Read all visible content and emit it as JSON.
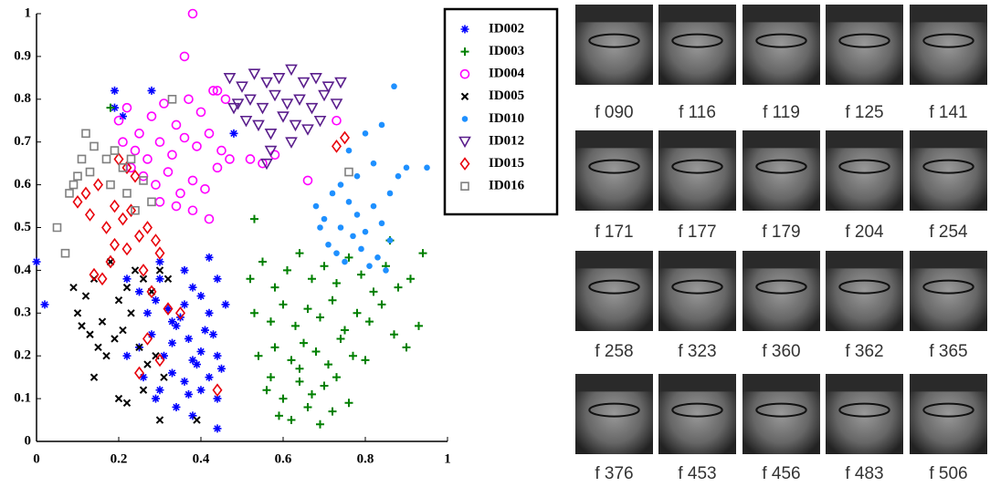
{
  "chart_data": {
    "type": "scatter",
    "xlim": [
      0,
      1
    ],
    "xticks": [
      0,
      0.2,
      0.4,
      0.6,
      0.8,
      1
    ],
    "ylim": [
      0,
      1
    ],
    "yticks": [
      0,
      0.1,
      0.2,
      0.3,
      0.4,
      0.5,
      0.6,
      0.7,
      0.8,
      0.9,
      1
    ],
    "legend": "right",
    "series": [
      {
        "name": "ID002",
        "color": "#0000ff",
        "marker": "asterisk",
        "x": [
          0.0,
          0.02,
          0.19,
          0.22,
          0.25,
          0.29,
          0.3,
          0.33,
          0.36,
          0.38,
          0.4,
          0.42,
          0.44,
          0.46,
          0.25,
          0.28,
          0.31,
          0.34,
          0.37,
          0.4,
          0.43,
          0.26,
          0.3,
          0.33,
          0.36,
          0.39,
          0.42,
          0.45,
          0.27,
          0.32,
          0.35,
          0.38,
          0.41,
          0.44,
          0.29,
          0.34,
          0.37,
          0.4,
          0.44,
          0.3,
          0.36,
          0.42,
          0.38,
          0.19,
          0.28,
          0.44,
          0.21,
          0.48,
          0.22,
          0.33
        ],
        "values": [
          0.42,
          0.32,
          0.78,
          0.38,
          0.35,
          0.33,
          0.38,
          0.28,
          0.32,
          0.36,
          0.34,
          0.3,
          0.38,
          0.32,
          0.22,
          0.25,
          0.2,
          0.27,
          0.24,
          0.21,
          0.25,
          0.15,
          0.12,
          0.16,
          0.14,
          0.18,
          0.15,
          0.17,
          0.3,
          0.31,
          0.29,
          0.19,
          0.26,
          0.2,
          0.1,
          0.08,
          0.11,
          0.12,
          0.1,
          0.42,
          0.4,
          0.43,
          0.06,
          0.82,
          0.82,
          0.03,
          0.76,
          0.72,
          0.2,
          0.23
        ]
      },
      {
        "name": "ID003",
        "color": "#008000",
        "marker": "plus",
        "x": [
          0.52,
          0.55,
          0.58,
          0.61,
          0.64,
          0.67,
          0.7,
          0.73,
          0.76,
          0.79,
          0.82,
          0.85,
          0.88,
          0.91,
          0.94,
          0.53,
          0.57,
          0.6,
          0.63,
          0.66,
          0.69,
          0.72,
          0.75,
          0.78,
          0.81,
          0.84,
          0.87,
          0.9,
          0.54,
          0.58,
          0.62,
          0.65,
          0.68,
          0.71,
          0.74,
          0.77,
          0.8,
          0.56,
          0.6,
          0.64,
          0.67,
          0.7,
          0.73,
          0.76,
          0.59,
          0.62,
          0.66,
          0.69,
          0.72,
          0.18,
          0.53,
          0.93,
          0.86,
          0.64,
          0.57
        ],
        "values": [
          0.38,
          0.42,
          0.36,
          0.4,
          0.44,
          0.38,
          0.41,
          0.37,
          0.43,
          0.39,
          0.35,
          0.41,
          0.36,
          0.38,
          0.44,
          0.3,
          0.28,
          0.32,
          0.27,
          0.31,
          0.29,
          0.33,
          0.26,
          0.3,
          0.28,
          0.32,
          0.25,
          0.22,
          0.2,
          0.22,
          0.19,
          0.23,
          0.21,
          0.18,
          0.24,
          0.2,
          0.19,
          0.12,
          0.1,
          0.14,
          0.11,
          0.13,
          0.15,
          0.09,
          0.06,
          0.05,
          0.08,
          0.04,
          0.07,
          0.78,
          0.52,
          0.27,
          0.47,
          0.17,
          0.15
        ]
      },
      {
        "name": "ID004",
        "color": "#ff00ff",
        "marker": "circle",
        "x": [
          0.2,
          0.22,
          0.25,
          0.28,
          0.31,
          0.34,
          0.37,
          0.4,
          0.43,
          0.46,
          0.21,
          0.24,
          0.27,
          0.3,
          0.33,
          0.36,
          0.39,
          0.42,
          0.45,
          0.23,
          0.26,
          0.29,
          0.32,
          0.35,
          0.38,
          0.41,
          0.44,
          0.47,
          0.3,
          0.34,
          0.38,
          0.42,
          0.36,
          0.38,
          0.66,
          0.52,
          0.55,
          0.58,
          0.73,
          0.44
        ],
        "values": [
          0.75,
          0.78,
          0.72,
          0.76,
          0.79,
          0.74,
          0.8,
          0.77,
          0.82,
          0.8,
          0.7,
          0.68,
          0.66,
          0.7,
          0.67,
          0.71,
          0.69,
          0.72,
          0.68,
          0.64,
          0.62,
          0.6,
          0.63,
          0.58,
          0.61,
          0.59,
          0.64,
          0.66,
          0.56,
          0.55,
          0.54,
          0.52,
          0.9,
          1.0,
          0.61,
          0.66,
          0.65,
          0.67,
          0.75,
          0.82
        ]
      },
      {
        "name": "ID005",
        "color": "#000000",
        "marker": "cross",
        "x": [
          0.09,
          0.1,
          0.12,
          0.14,
          0.16,
          0.18,
          0.2,
          0.22,
          0.24,
          0.26,
          0.28,
          0.3,
          0.32,
          0.11,
          0.13,
          0.15,
          0.17,
          0.19,
          0.21,
          0.23,
          0.25,
          0.27,
          0.29,
          0.31,
          0.14,
          0.2,
          0.26,
          0.3,
          0.22,
          0.39
        ],
        "values": [
          0.36,
          0.3,
          0.34,
          0.38,
          0.28,
          0.42,
          0.33,
          0.36,
          0.4,
          0.38,
          0.35,
          0.4,
          0.38,
          0.27,
          0.25,
          0.22,
          0.2,
          0.24,
          0.26,
          0.3,
          0.22,
          0.18,
          0.2,
          0.15,
          0.15,
          0.1,
          0.12,
          0.05,
          0.09,
          0.05
        ]
      },
      {
        "name": "ID010",
        "color": "#1e90ff",
        "marker": "dot",
        "x": [
          0.68,
          0.7,
          0.72,
          0.74,
          0.76,
          0.78,
          0.8,
          0.82,
          0.84,
          0.86,
          0.71,
          0.73,
          0.75,
          0.77,
          0.79,
          0.81,
          0.83,
          0.85,
          0.69,
          0.74,
          0.78,
          0.82,
          0.86,
          0.88,
          0.9,
          0.95,
          0.76,
          0.8,
          0.84,
          0.87
        ],
        "values": [
          0.55,
          0.52,
          0.58,
          0.5,
          0.56,
          0.53,
          0.49,
          0.55,
          0.51,
          0.47,
          0.46,
          0.44,
          0.42,
          0.48,
          0.45,
          0.41,
          0.43,
          0.4,
          0.5,
          0.6,
          0.62,
          0.65,
          0.58,
          0.62,
          0.64,
          0.64,
          0.68,
          0.72,
          0.74,
          0.83
        ]
      },
      {
        "name": "ID012",
        "color": "#5a1e8c",
        "marker": "triangle",
        "x": [
          0.47,
          0.5,
          0.53,
          0.56,
          0.59,
          0.62,
          0.65,
          0.68,
          0.71,
          0.74,
          0.49,
          0.52,
          0.55,
          0.58,
          0.61,
          0.64,
          0.67,
          0.7,
          0.73,
          0.51,
          0.54,
          0.57,
          0.6,
          0.63,
          0.66,
          0.69,
          0.57,
          0.62,
          0.56,
          0.48
        ],
        "values": [
          0.85,
          0.83,
          0.86,
          0.84,
          0.85,
          0.87,
          0.84,
          0.85,
          0.83,
          0.84,
          0.79,
          0.8,
          0.78,
          0.81,
          0.79,
          0.8,
          0.78,
          0.81,
          0.79,
          0.75,
          0.74,
          0.72,
          0.76,
          0.74,
          0.73,
          0.75,
          0.68,
          0.7,
          0.65,
          0.78
        ]
      },
      {
        "name": "ID015",
        "color": "#e8000b",
        "marker": "diamond",
        "x": [
          0.1,
          0.13,
          0.15,
          0.17,
          0.19,
          0.21,
          0.23,
          0.25,
          0.27,
          0.29,
          0.14,
          0.18,
          0.22,
          0.26,
          0.3,
          0.2,
          0.24,
          0.28,
          0.32,
          0.35,
          0.27,
          0.25,
          0.44,
          0.73,
          0.75,
          0.16,
          0.22,
          0.19,
          0.3,
          0.12
        ],
        "values": [
          0.56,
          0.53,
          0.6,
          0.5,
          0.55,
          0.52,
          0.54,
          0.48,
          0.5,
          0.47,
          0.39,
          0.42,
          0.45,
          0.4,
          0.44,
          0.66,
          0.62,
          0.35,
          0.31,
          0.3,
          0.24,
          0.16,
          0.12,
          0.69,
          0.71,
          0.38,
          0.64,
          0.46,
          0.19,
          0.58
        ]
      },
      {
        "name": "ID016",
        "color": "#808080",
        "marker": "square",
        "x": [
          0.05,
          0.07,
          0.08,
          0.1,
          0.11,
          0.12,
          0.14,
          0.17,
          0.19,
          0.21,
          0.22,
          0.24,
          0.26,
          0.28,
          0.09,
          0.13,
          0.18,
          0.23,
          0.33,
          0.76
        ],
        "values": [
          0.5,
          0.44,
          0.58,
          0.62,
          0.66,
          0.72,
          0.69,
          0.66,
          0.68,
          0.64,
          0.58,
          0.54,
          0.61,
          0.56,
          0.6,
          0.63,
          0.6,
          0.66,
          0.8,
          0.63
        ]
      }
    ]
  },
  "faces": {
    "captions": [
      "f 090",
      "f 116",
      "f 119",
      "f 125",
      "f 141",
      "f 171",
      "f 177",
      "f 179",
      "f 204",
      "f 254",
      "f 258",
      "f 323",
      "f 360",
      "f 362",
      "f 365",
      "f 376",
      "f 453",
      "f 456",
      "f 483",
      "f 506"
    ]
  }
}
